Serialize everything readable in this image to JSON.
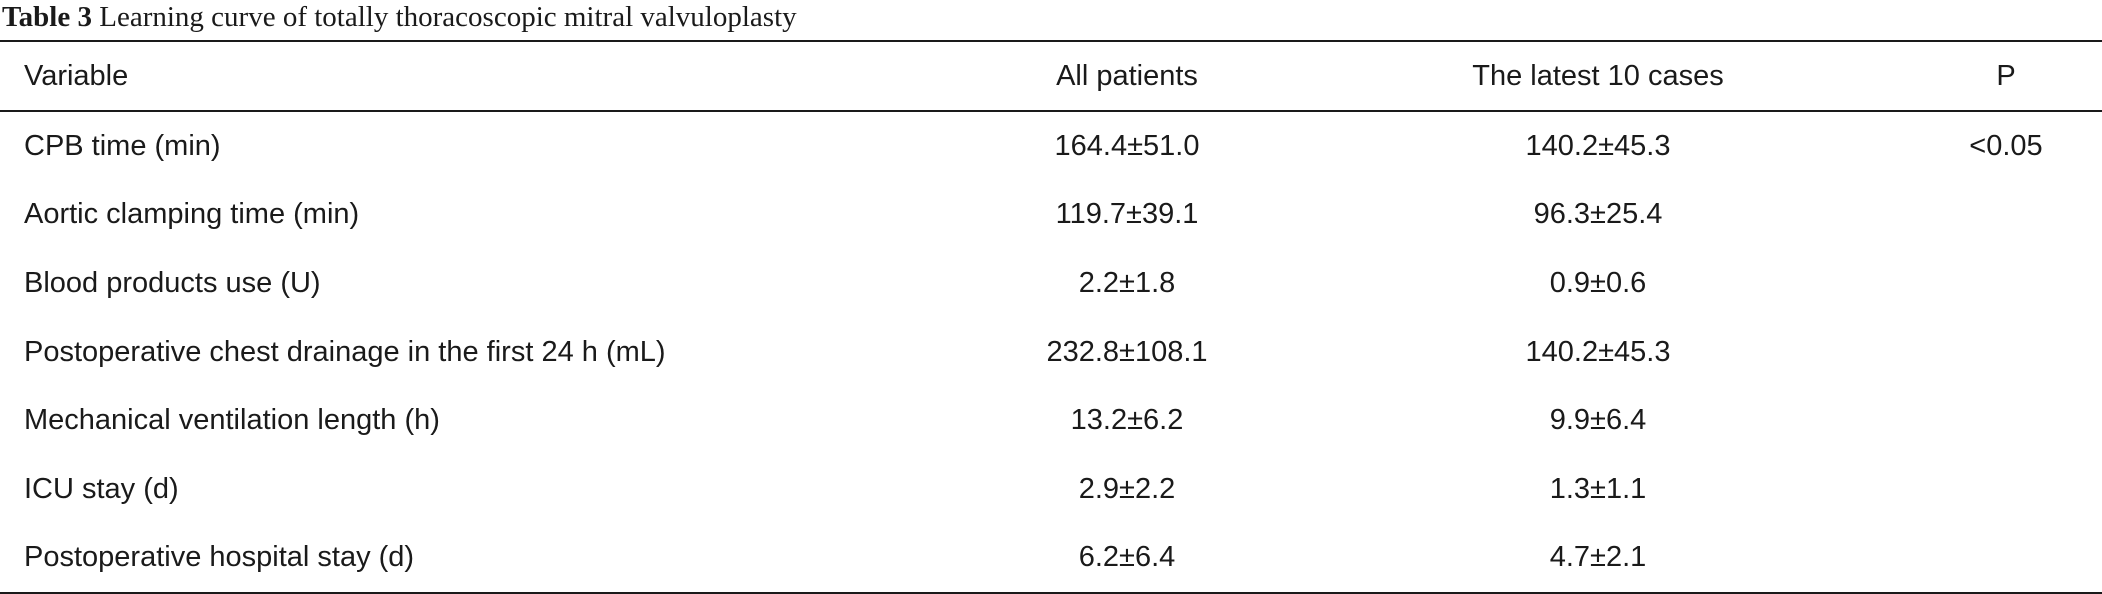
{
  "caption": {
    "label": "Table 3",
    "text": "Learning curve of totally thoracoscopic mitral valvuloplasty"
  },
  "table": {
    "headers": [
      "Variable",
      "All patients",
      "The latest 10 cases",
      "P"
    ],
    "rows": [
      {
        "variable": "CPB time (min)",
        "all_patients": "164.4±51.0",
        "latest_10": "140.2±45.3",
        "p": "<0.05"
      },
      {
        "variable": "Aortic clamping time (min)",
        "all_patients": "119.7±39.1",
        "latest_10": "96.3±25.4",
        "p": ""
      },
      {
        "variable": "Blood products use (U)",
        "all_patients": "2.2±1.8",
        "latest_10": "0.9±0.6",
        "p": ""
      },
      {
        "variable": "Postoperative chest drainage in the first 24 h (mL)",
        "all_patients": "232.8±108.1",
        "latest_10": "140.2±45.3",
        "p": ""
      },
      {
        "variable": "Mechanical ventilation length (h)",
        "all_patients": "13.2±6.2",
        "latest_10": "9.9±6.4",
        "p": ""
      },
      {
        "variable": "ICU stay (d)",
        "all_patients": "2.9±2.2",
        "latest_10": "1.3±1.1",
        "p": ""
      },
      {
        "variable": "Postoperative hospital stay (d)",
        "all_patients": "6.2±6.4",
        "latest_10": "4.7±2.1",
        "p": ""
      }
    ]
  }
}
